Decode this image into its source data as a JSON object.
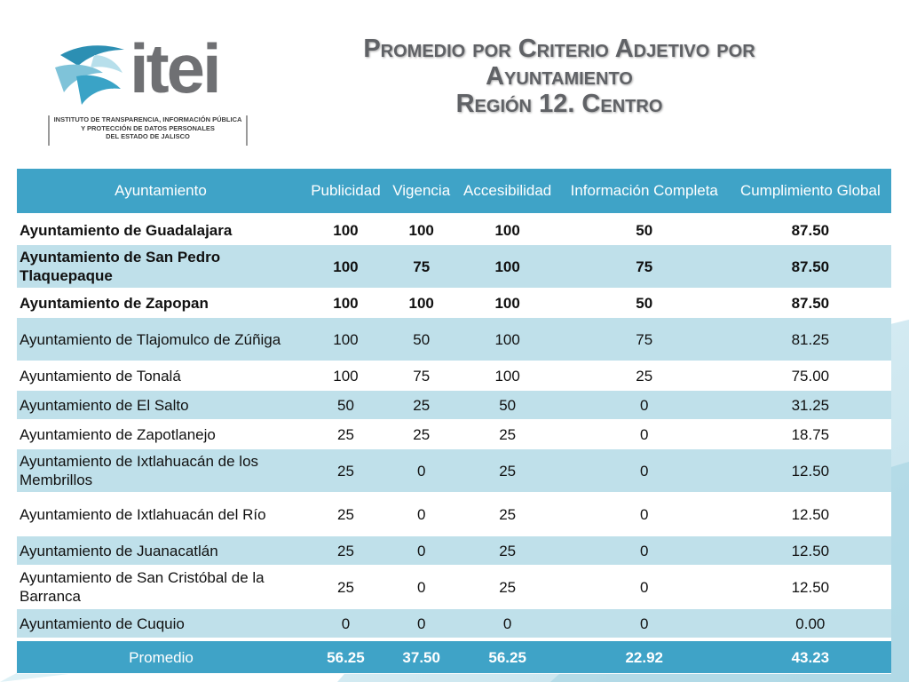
{
  "title": {
    "line1": "Promedio por Criterio Adjetivo por",
    "line2": "Ayuntamiento",
    "line3": "Región 12.  Centro"
  },
  "logo": {
    "wordmark": "itei",
    "subtitle_lines": [
      "INSTITUTO DE TRANSPARENCIA, INFORMACIÓN PÚBLICA",
      "Y PROTECCIÓN DE DATOS PERSONALES",
      "DEL ESTADO DE JALISCO"
    ]
  },
  "colors": {
    "header_bg": "#3fa3c7",
    "stripe": "#bfe0ea",
    "title": "#606266"
  },
  "table": {
    "headers": [
      "Ayuntamiento",
      "Publicidad",
      "Vigencia",
      "Accesibilidad",
      "Información Completa",
      "Cumplimiento Global"
    ],
    "rows": [
      {
        "name": "Ayuntamiento de Guadalajara",
        "values": [
          "100",
          "100",
          "100",
          "50",
          "87.50"
        ]
      },
      {
        "name": "Ayuntamiento de San Pedro Tlaquepaque",
        "values": [
          "100",
          "75",
          "100",
          "75",
          "87.50"
        ]
      },
      {
        "name": "Ayuntamiento de Zapopan",
        "values": [
          "100",
          "100",
          "100",
          "50",
          "87.50"
        ]
      },
      {
        "name": "Ayuntamiento de Tlajomulco de Zúñiga",
        "values": [
          "100",
          "50",
          "100",
          "75",
          "81.25"
        ]
      },
      {
        "name": "Ayuntamiento de Tonalá",
        "values": [
          "100",
          "75",
          "100",
          "25",
          "75.00"
        ]
      },
      {
        "name": "Ayuntamiento de El Salto",
        "values": [
          "50",
          "25",
          "50",
          "0",
          "31.25"
        ]
      },
      {
        "name": "Ayuntamiento de Zapotlanejo",
        "values": [
          "25",
          "25",
          "25",
          "0",
          "18.75"
        ]
      },
      {
        "name": "Ayuntamiento de Ixtlahuacán de los Membrillos",
        "values": [
          "25",
          "0",
          "25",
          "0",
          "12.50"
        ]
      },
      {
        "name": "Ayuntamiento de Ixtlahuacán del Río",
        "values": [
          "25",
          "0",
          "25",
          "0",
          "12.50"
        ]
      },
      {
        "name": "Ayuntamiento de Juanacatlán",
        "values": [
          "25",
          "0",
          "25",
          "0",
          "12.50"
        ]
      },
      {
        "name": "Ayuntamiento de San Cristóbal de la Barranca",
        "values": [
          "25",
          "0",
          "25",
          "0",
          "12.50"
        ]
      },
      {
        "name": "Ayuntamiento de Cuquio",
        "values": [
          "0",
          "0",
          "0",
          "0",
          "0.00"
        ]
      }
    ],
    "footer": {
      "name": "Promedio",
      "values": [
        "56.25",
        "37.50",
        "56.25",
        "22.92",
        "43.23"
      ]
    }
  }
}
